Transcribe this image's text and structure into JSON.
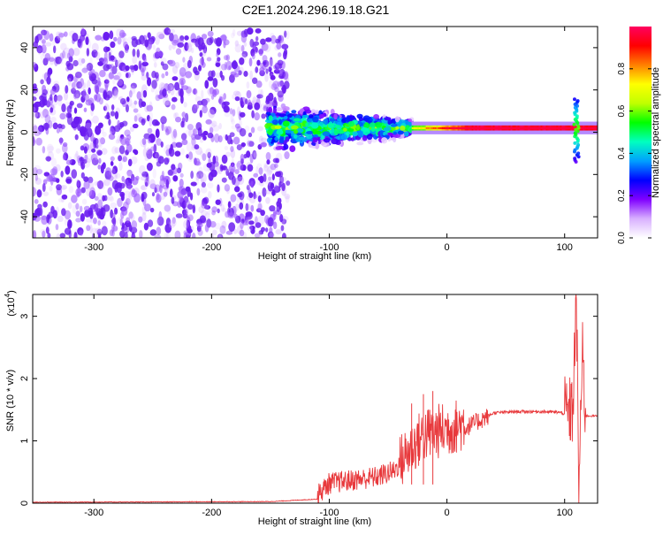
{
  "figure": {
    "title": "C2E1.2024.296.19.18.G21"
  },
  "chart_data": [
    {
      "type": "heatmap",
      "title": "C2E1.2024.296.19.18.G21",
      "xlabel": "Height of straight line (km)",
      "ylabel": "Frequency (Hz)",
      "xlim": [
        -352,
        128
      ],
      "ylim": [
        -50,
        50
      ],
      "x_ticks": [
        -300,
        -200,
        -100,
        0,
        100
      ],
      "y_ticks": [
        -40,
        -20,
        0,
        20,
        40
      ],
      "colorbar": {
        "label": "Normalized spectral amplitude",
        "range": [
          0,
          1
        ],
        "ticks": [
          "0.0",
          "0.2",
          "0.4",
          "0.6",
          "0.8"
        ],
        "colors": [
          "#ffffff",
          "#d8b0ff",
          "#8000ff",
          "#0000ff",
          "#00a0ff",
          "#00ffc0",
          "#00ff00",
          "#c0ff00",
          "#ffff00",
          "#ff8000",
          "#ff0000",
          "#ff0060"
        ]
      },
      "regions": [
        {
          "x_range": [
            -352,
            -135
          ],
          "y_range": [
            -50,
            48
          ],
          "amplitude_range": [
            0.03,
            0.25
          ],
          "description_color": "#8000ff"
        },
        {
          "x_range": [
            -152,
            -30
          ],
          "y_range": [
            -12,
            14
          ],
          "amplitude_range": [
            0.2,
            0.6
          ]
        },
        {
          "x_range": [
            -30,
            128
          ],
          "y_range": [
            1,
            3
          ],
          "amplitude_range": [
            0.6,
            0.95
          ]
        }
      ],
      "features": [
        {
          "x": 110,
          "y_range": [
            -14,
            16
          ]
        }
      ]
    },
    {
      "type": "line",
      "xlabel": "Height of straight line (km)",
      "ylabel": "SNR (10 * v/v)",
      "multiplier_label": "(x10",
      "multiplier_exp": "4",
      "multiplier_close": ")",
      "xlim": [
        -352,
        128
      ],
      "ylim": [
        0,
        3.35
      ],
      "x_ticks": [
        -300,
        -200,
        -100,
        0,
        100
      ],
      "y_ticks": [
        0,
        1,
        2,
        3
      ],
      "color": "#e8393c",
      "series": [
        {
          "x": -352,
          "y": 0.01
        },
        {
          "x": -250,
          "y": 0.015
        },
        {
          "x": -150,
          "y": 0.02
        },
        {
          "x": -110,
          "y": 0.06
        },
        {
          "x": -100,
          "y": 0.25
        },
        {
          "x": -80,
          "y": 0.3
        },
        {
          "x": -60,
          "y": 0.35
        },
        {
          "x": -45,
          "y": 0.45
        },
        {
          "x": -30,
          "y": 0.8
        },
        {
          "x": -20,
          "y": 1.0
        },
        {
          "x": -10,
          "y": 1.05
        },
        {
          "x": 0,
          "y": 1.1
        },
        {
          "x": 10,
          "y": 1.15
        },
        {
          "x": 20,
          "y": 1.25
        },
        {
          "x": 30,
          "y": 1.35
        },
        {
          "x": 40,
          "y": 1.45
        },
        {
          "x": 60,
          "y": 1.47
        },
        {
          "x": 80,
          "y": 1.47
        },
        {
          "x": 95,
          "y": 1.46
        },
        {
          "x": 103,
          "y": 1.42
        },
        {
          "x": 107,
          "y": 1.5
        },
        {
          "x": 110,
          "y": 3.35
        },
        {
          "x": 112,
          "y": 0.15
        },
        {
          "x": 115,
          "y": 2.4
        },
        {
          "x": 118,
          "y": 1.4
        },
        {
          "x": 128,
          "y": 1.4
        }
      ],
      "peaks": [
        {
          "x": -30,
          "y": 1.6
        },
        {
          "x": -20,
          "y": 1.75
        },
        {
          "x": -12,
          "y": 1.8
        }
      ]
    }
  ]
}
